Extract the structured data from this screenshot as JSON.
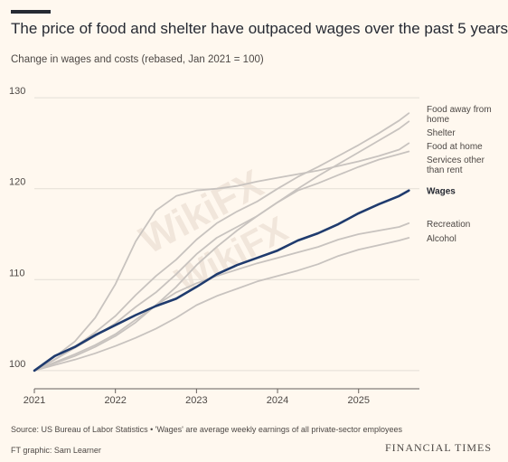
{
  "header": {
    "title": "The price of food and shelter have outpaced wages over the past 5 years",
    "subtitle": "Change in wages and costs (rebased, Jan 2021 = 100)"
  },
  "footer": {
    "source": "Source: US Bureau of Labor Statistics • 'Wages' are average weekly earnings of all private-sector employees",
    "credit": "FT graphic: Sam Learner",
    "brand": "FINANCIAL TIMES"
  },
  "watermark": {
    "text": "WikiFX"
  },
  "colors": {
    "background": "#fff8ef",
    "highlight": "#1f3b6e",
    "other_series": "#c8c3bf",
    "grid": "#e3ddd6"
  },
  "chart_data": {
    "type": "line",
    "title": "The price of food and shelter have outpaced wages over the past 5 years",
    "subtitle": "Change in wages and costs (rebased, Jan 2021 = 100)",
    "xlabel": "",
    "ylabel": "",
    "x_ticks": [
      "2021",
      "2022",
      "2023",
      "2024",
      "2025"
    ],
    "y_ticks": [
      100,
      110,
      120,
      130
    ],
    "xlim": [
      2021.0,
      2025.75
    ],
    "ylim": [
      98,
      132
    ],
    "grid": true,
    "legend": "direct labels at line ends",
    "x": [
      2021.0,
      2021.25,
      2021.5,
      2021.75,
      2022.0,
      2022.25,
      2022.5,
      2022.75,
      2023.0,
      2023.25,
      2023.5,
      2023.75,
      2024.0,
      2024.25,
      2024.5,
      2024.75,
      2025.0,
      2025.25,
      2025.5,
      2025.62
    ],
    "series": [
      {
        "name": "Food away from home",
        "highlight": false,
        "values": [
          100,
          101.2,
          102.6,
          104.2,
          106.0,
          108.3,
          110.4,
          112.2,
          114.4,
          116.2,
          117.5,
          118.6,
          120.0,
          121.3,
          122.4,
          123.6,
          124.8,
          126.1,
          127.5,
          128.3
        ]
      },
      {
        "name": "Shelter",
        "highlight": false,
        "values": [
          100,
          100.8,
          101.6,
          102.6,
          103.8,
          105.3,
          107.2,
          109.2,
          111.6,
          113.6,
          115.4,
          117.0,
          118.5,
          120.0,
          121.4,
          122.7,
          124.0,
          125.3,
          126.6,
          127.4
        ]
      },
      {
        "name": "Food at home",
        "highlight": false,
        "values": [
          100,
          101.5,
          103.2,
          105.8,
          109.5,
          114.2,
          117.6,
          119.2,
          119.8,
          120.0,
          120.3,
          120.8,
          121.2,
          121.6,
          122.0,
          122.5,
          123.0,
          123.6,
          124.3,
          125.0
        ]
      },
      {
        "name": "Services other than rent",
        "highlight": false,
        "values": [
          100,
          101.2,
          102.5,
          103.8,
          105.2,
          107.0,
          108.6,
          110.6,
          112.8,
          114.6,
          115.8,
          117.0,
          118.5,
          119.8,
          120.6,
          121.5,
          122.4,
          123.2,
          123.8,
          124.1
        ]
      },
      {
        "name": "Wages",
        "highlight": true,
        "values": [
          100,
          101.6,
          102.6,
          103.9,
          105.0,
          106.1,
          107.1,
          107.9,
          109.2,
          110.6,
          111.6,
          112.4,
          113.2,
          114.3,
          115.1,
          116.1,
          117.3,
          118.3,
          119.2,
          119.8
        ]
      },
      {
        "name": "Recreation",
        "highlight": false,
        "values": [
          100,
          100.9,
          101.8,
          102.8,
          104.0,
          105.6,
          107.2,
          108.6,
          109.6,
          110.4,
          111.1,
          111.8,
          112.4,
          113.0,
          113.6,
          114.4,
          115.0,
          115.4,
          115.8,
          116.2
        ]
      },
      {
        "name": "Alcohol",
        "highlight": false,
        "values": [
          100,
          100.6,
          101.2,
          101.9,
          102.7,
          103.6,
          104.6,
          105.8,
          107.2,
          108.2,
          109.0,
          109.8,
          110.4,
          111.0,
          111.7,
          112.6,
          113.3,
          113.8,
          114.3,
          114.6
        ]
      }
    ]
  }
}
